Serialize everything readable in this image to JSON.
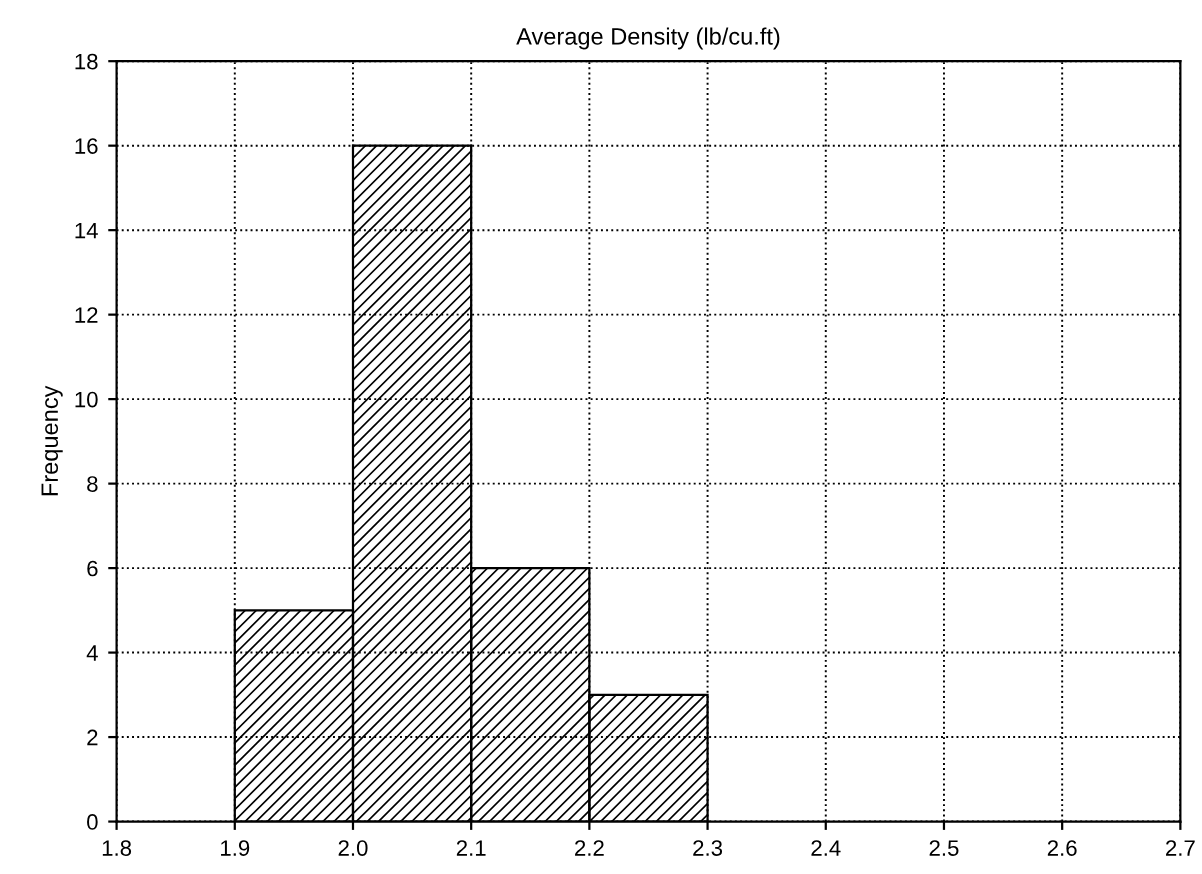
{
  "chart_data": {
    "type": "histogram",
    "title": "Average Density (lb/cu.ft)",
    "ylabel": "Frequency",
    "bins": [
      1.9,
      2.0,
      2.1,
      2.2,
      2.3
    ],
    "values": [
      5,
      16,
      6,
      3
    ],
    "color": "#000000",
    "xlim": [
      1.8,
      2.7
    ],
    "xticks": [
      1.8,
      1.9,
      {
        "value": 2.0,
        "label": "2.0"
      },
      2.1,
      2.2,
      2.3,
      2.4,
      2.5,
      2.6,
      2.7
    ],
    "ylim": [
      0,
      18
    ],
    "yticks": [
      0,
      2,
      4,
      6,
      8,
      10,
      12,
      14,
      16,
      18
    ],
    "grid": true
  }
}
